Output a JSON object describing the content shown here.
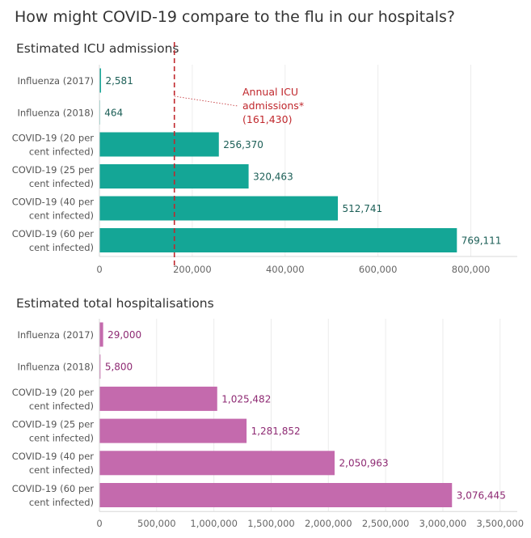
{
  "title": "How might COVID-19 compare to the flu in our hospitals?",
  "chart_data": [
    {
      "type": "bar",
      "orientation": "horizontal",
      "title": "Estimated ICU admissions",
      "color": "#14a696",
      "label_color": "#1b5e56",
      "categories": [
        [
          "Influenza (2017)"
        ],
        [
          "Influenza (2018)"
        ],
        [
          "COVID-19 (20 per",
          "cent infected)"
        ],
        [
          "COVID-19 (25 per",
          "cent infected)"
        ],
        [
          "COVID-19 (40 per",
          "cent infected)"
        ],
        [
          "COVID-19 (60 per",
          "cent infected)"
        ]
      ],
      "values": [
        2581,
        464,
        256370,
        320463,
        512741,
        769111
      ],
      "value_labels": [
        "2,581",
        "464",
        "256,370",
        "320,463",
        "512,741",
        "769,111"
      ],
      "xlim": [
        0,
        900000
      ],
      "ticks": [
        0,
        200000,
        400000,
        600000,
        800000
      ],
      "tick_labels": [
        "0",
        "200,000",
        "400,000",
        "600,000",
        "800,000"
      ],
      "reference_line": {
        "value": 161430,
        "color": "#c0282d",
        "label_lines": [
          "Annual ICU",
          "admissions*",
          "(161,430)"
        ]
      }
    },
    {
      "type": "bar",
      "orientation": "horizontal",
      "title": "Estimated total hospitalisations",
      "color": "#c46aad",
      "label_color": "#8e2a73",
      "categories": [
        [
          "Influenza (2017)"
        ],
        [
          "Influenza (2018)"
        ],
        [
          "COVID-19 (20 per",
          "cent infected)"
        ],
        [
          "COVID-19 (25 per",
          "cent infected)"
        ],
        [
          "COVID-19 (40 per",
          "cent infected)"
        ],
        [
          "COVID-19 (60 per",
          "cent infected)"
        ]
      ],
      "values": [
        29000,
        5800,
        1025482,
        1281852,
        2050963,
        3076445
      ],
      "value_labels": [
        "29,000",
        "5,800",
        "1,025,482",
        "1,281,852",
        "2,050,963",
        "3,076,445"
      ],
      "xlim": [
        0,
        3650000
      ],
      "ticks": [
        0,
        500000,
        1000000,
        1500000,
        2000000,
        2500000,
        3000000,
        3500000
      ],
      "tick_labels": [
        "0",
        "500,000",
        "1,000,000",
        "1,500,000",
        "2,000,000",
        "2,500,000",
        "3,000,000",
        "3,500,000"
      ]
    }
  ]
}
